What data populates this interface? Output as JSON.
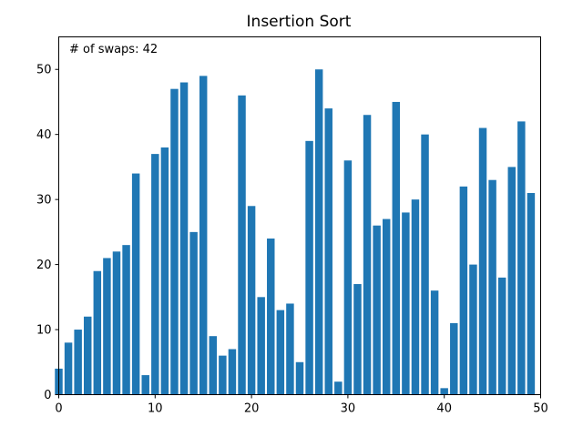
{
  "chart_data": {
    "type": "bar",
    "title": "Insertion Sort",
    "annotation": "# of swaps: 42",
    "xlabel": "",
    "ylabel": "",
    "x": [
      0,
      1,
      2,
      3,
      4,
      5,
      6,
      7,
      8,
      9,
      10,
      11,
      12,
      13,
      14,
      15,
      16,
      17,
      18,
      19,
      20,
      21,
      22,
      23,
      24,
      25,
      26,
      27,
      28,
      29,
      30,
      31,
      32,
      33,
      34,
      35,
      36,
      37,
      38,
      39,
      40,
      41,
      42,
      43,
      44,
      45,
      46,
      47,
      48,
      49
    ],
    "values": [
      4,
      8,
      10,
      12,
      19,
      21,
      22,
      23,
      34,
      3,
      37,
      38,
      47,
      48,
      25,
      49,
      9,
      6,
      7,
      46,
      29,
      15,
      24,
      13,
      14,
      5,
      39,
      50,
      44,
      2,
      36,
      17,
      43,
      26,
      27,
      45,
      28,
      30,
      40,
      16,
      1,
      11,
      32,
      20,
      41,
      33,
      18,
      35,
      42,
      31
    ],
    "xlim": [
      0,
      50
    ],
    "ylim": [
      0,
      55
    ],
    "xticks": [
      0,
      10,
      20,
      30,
      40,
      50
    ],
    "yticks": [
      0,
      10,
      20,
      30,
      40,
      50
    ],
    "grid": false,
    "bar_color": "#1f77b4"
  }
}
